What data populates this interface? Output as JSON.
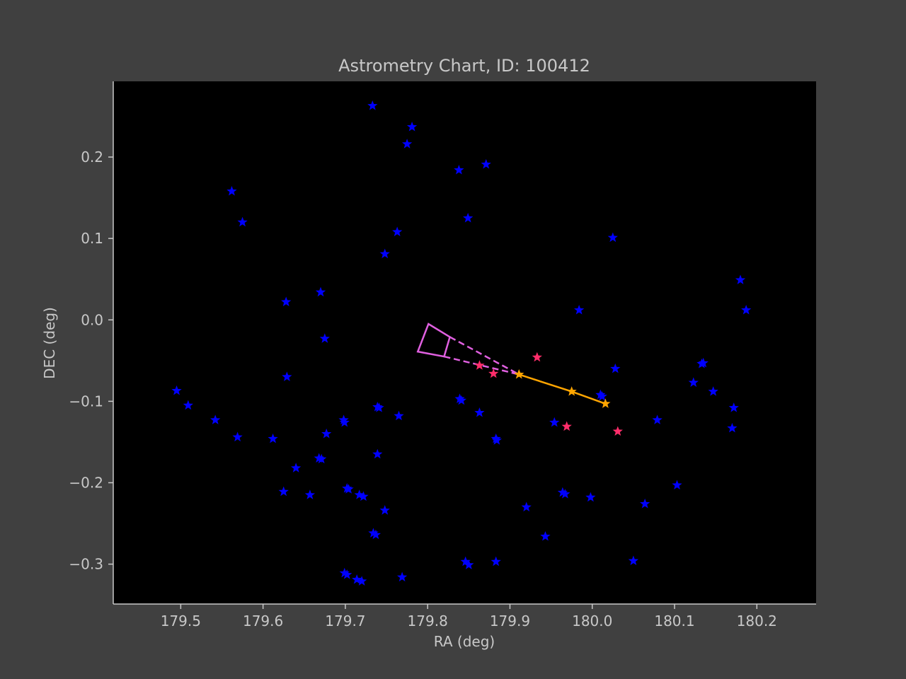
{
  "chart_data": {
    "type": "scatter",
    "title": "Astrometry Chart, ID: 100412",
    "xlabel": "RA (deg)",
    "ylabel": "DEC (deg)",
    "xlim": [
      179.418,
      180.272
    ],
    "ylim": [
      -0.349,
      0.293
    ],
    "xticks": [
      179.5,
      179.6,
      179.7,
      179.8,
      179.9,
      180.0,
      180.1,
      180.2
    ],
    "xtick_labels": [
      "179.5",
      "179.6",
      "179.7",
      "179.8",
      "179.9",
      "180.0",
      "180.1",
      "180.2"
    ],
    "yticks": [
      0.2,
      0.1,
      0.0,
      -0.1,
      -0.2,
      -0.3
    ],
    "ytick_labels": [
      "0.2",
      "0.1",
      "0.0",
      "−0.1",
      "−0.2",
      "−0.3"
    ],
    "grid": false,
    "colors": {
      "background": "#404040",
      "plot_background": "#000000",
      "axis": "#c8c8c8",
      "field_stars": "#0000ff",
      "candidate_stars": "#ff2d6a",
      "track": "#ffa500",
      "uncertainty_wedge": "#e060e0"
    },
    "series": [
      {
        "kind": "field_stars",
        "marker": "star",
        "points": [
          [
            179.733,
            0.263
          ],
          [
            179.781,
            0.237
          ],
          [
            179.775,
            0.216
          ],
          [
            179.838,
            0.184
          ],
          [
            179.871,
            0.191
          ],
          [
            179.562,
            0.158
          ],
          [
            179.849,
            0.125
          ],
          [
            179.575,
            0.12
          ],
          [
            179.763,
            0.108
          ],
          [
            179.748,
            0.081
          ],
          [
            180.025,
            0.101
          ],
          [
            180.18,
            0.049
          ],
          [
            179.67,
            0.034
          ],
          [
            179.628,
            0.022
          ],
          [
            179.984,
            0.012
          ],
          [
            180.187,
            0.012
          ],
          [
            179.675,
            -0.023
          ],
          [
            180.028,
            -0.06
          ],
          [
            179.629,
            -0.07
          ],
          [
            180.135,
            -0.053
          ],
          [
            180.133,
            -0.054
          ],
          [
            180.123,
            -0.077
          ],
          [
            180.147,
            -0.088
          ],
          [
            180.01,
            -0.092
          ],
          [
            180.012,
            -0.094
          ],
          [
            179.495,
            -0.087
          ],
          [
            179.509,
            -0.105
          ],
          [
            179.839,
            -0.097
          ],
          [
            179.841,
            -0.099
          ],
          [
            179.739,
            -0.107
          ],
          [
            179.741,
            -0.108
          ],
          [
            180.172,
            -0.108
          ],
          [
            179.863,
            -0.114
          ],
          [
            179.765,
            -0.118
          ],
          [
            179.542,
            -0.123
          ],
          [
            179.698,
            -0.123
          ],
          [
            179.699,
            -0.126
          ],
          [
            179.954,
            -0.126
          ],
          [
            180.079,
            -0.123
          ],
          [
            180.17,
            -0.133
          ],
          [
            179.677,
            -0.14
          ],
          [
            179.569,
            -0.144
          ],
          [
            179.612,
            -0.146
          ],
          [
            179.883,
            -0.146
          ],
          [
            179.884,
            -0.148
          ],
          [
            179.668,
            -0.17
          ],
          [
            179.671,
            -0.171
          ],
          [
            179.739,
            -0.165
          ],
          [
            179.64,
            -0.182
          ],
          [
            180.103,
            -0.203
          ],
          [
            179.702,
            -0.207
          ],
          [
            179.704,
            -0.208
          ],
          [
            179.625,
            -0.211
          ],
          [
            179.964,
            -0.212
          ],
          [
            179.967,
            -0.214
          ],
          [
            179.657,
            -0.215
          ],
          [
            179.717,
            -0.215
          ],
          [
            179.722,
            -0.217
          ],
          [
            179.998,
            -0.218
          ],
          [
            180.064,
            -0.226
          ],
          [
            179.92,
            -0.23
          ],
          [
            179.748,
            -0.234
          ],
          [
            179.734,
            -0.262
          ],
          [
            179.737,
            -0.264
          ],
          [
            179.943,
            -0.266
          ],
          [
            180.05,
            -0.296
          ],
          [
            179.846,
            -0.297
          ],
          [
            179.85,
            -0.301
          ],
          [
            179.883,
            -0.297
          ],
          [
            179.699,
            -0.311
          ],
          [
            179.702,
            -0.313
          ],
          [
            179.769,
            -0.316
          ],
          [
            179.714,
            -0.319
          ],
          [
            179.72,
            -0.321
          ]
        ]
      },
      {
        "kind": "candidate_stars",
        "marker": "star",
        "points": [
          [
            179.933,
            -0.046
          ],
          [
            179.863,
            -0.056
          ],
          [
            179.88,
            -0.066
          ],
          [
            179.969,
            -0.131
          ],
          [
            180.031,
            -0.137
          ]
        ]
      },
      {
        "kind": "track",
        "marker": "star",
        "points": [
          [
            179.911,
            -0.067
          ],
          [
            179.975,
            -0.088
          ],
          [
            180.016,
            -0.103
          ]
        ]
      }
    ],
    "uncertainty_wedge": {
      "apex": [
        179.911,
        -0.067
      ],
      "outer_edge": [
        [
          179.801,
          -0.005
        ],
        [
          179.788,
          -0.039
        ]
      ],
      "inner_edge": [
        [
          179.827,
          -0.021
        ],
        [
          179.82,
          -0.045
        ]
      ],
      "solid_segments": [
        [
          179.827,
          -0.021
        ],
        [
          179.82,
          -0.045
        ]
      ],
      "dashed_segments": [
        [
          179.827,
          -0.021
        ],
        [
          179.82,
          -0.045
        ]
      ]
    }
  }
}
